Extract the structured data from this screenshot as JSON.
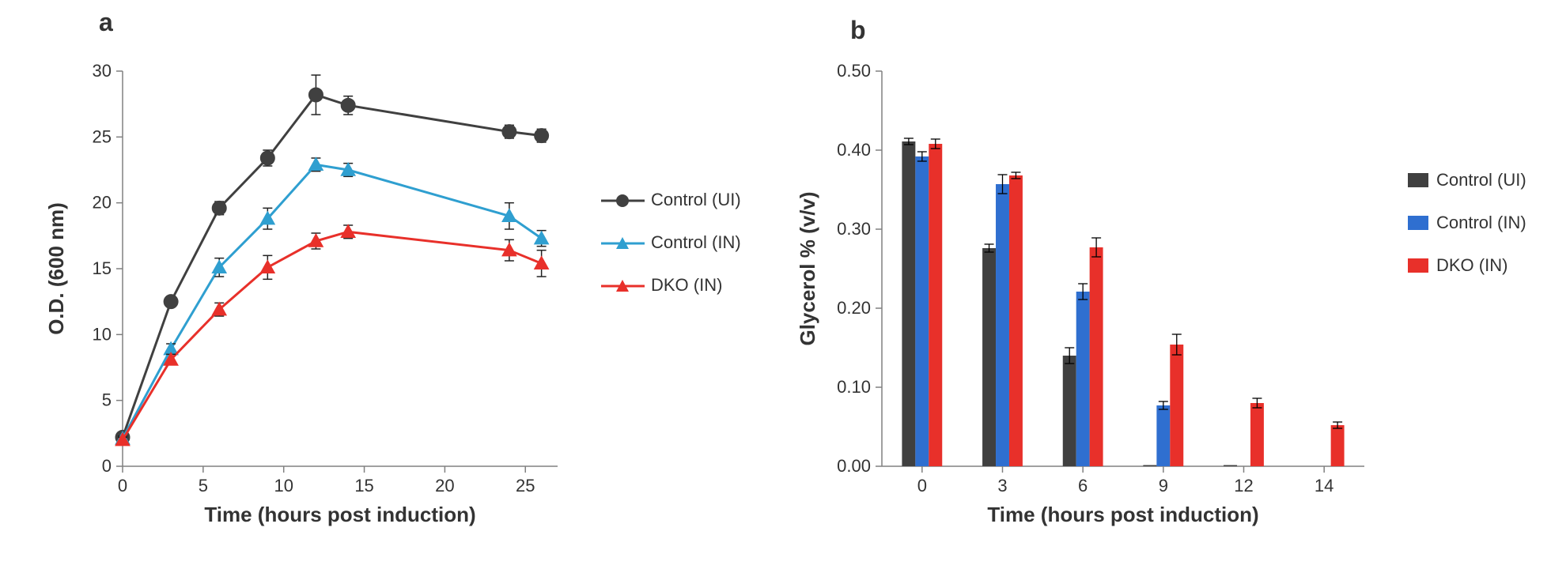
{
  "panel_a": {
    "label": "a",
    "label_fontsize": 32,
    "type": "line",
    "xlabel": "Time (hours post induction)",
    "ylabel": "O.D. (600 nm)",
    "label_fontsize_axis": 26,
    "tick_fontsize": 22,
    "xlim": [
      0,
      27
    ],
    "ylim": [
      0,
      30
    ],
    "xtick_values": [
      0,
      5,
      10,
      15,
      20,
      25
    ],
    "ytick_values": [
      0,
      5,
      10,
      15,
      20,
      25,
      30
    ],
    "background_color": "#ffffff",
    "axis_color": "#808080",
    "tick_length": 8,
    "line_width": 3,
    "marker_size": 9,
    "error_cap": 6,
    "series": [
      {
        "name": "Control (UI)",
        "color": "#404040",
        "marker": "circle",
        "x": [
          0,
          3,
          6,
          9,
          12,
          14,
          24,
          26
        ],
        "y": [
          2.2,
          12.5,
          19.6,
          23.4,
          28.2,
          27.4,
          25.4,
          25.1
        ],
        "err": [
          0.2,
          0.4,
          0.5,
          0.6,
          1.5,
          0.7,
          0.5,
          0.5
        ]
      },
      {
        "name": "Control (IN)",
        "color": "#2f9fd0",
        "marker": "triangle",
        "x": [
          0,
          3,
          6,
          9,
          12,
          14,
          24,
          26
        ],
        "y": [
          2.1,
          8.9,
          15.1,
          18.8,
          22.9,
          22.5,
          19.0,
          17.3
        ],
        "err": [
          0.2,
          0.4,
          0.7,
          0.8,
          0.5,
          0.5,
          1.0,
          0.6
        ]
      },
      {
        "name": "DKO (IN)",
        "color": "#e8302a",
        "marker": "triangle",
        "x": [
          0,
          3,
          6,
          9,
          12,
          14,
          24,
          26
        ],
        "y": [
          2.0,
          8.1,
          11.9,
          15.1,
          17.1,
          17.8,
          16.4,
          15.4
        ],
        "err": [
          0.2,
          0.4,
          0.5,
          0.9,
          0.6,
          0.5,
          0.8,
          1.0
        ]
      }
    ],
    "legend_items": [
      "Control (UI)",
      "Control (IN)",
      "DKO (IN)"
    ]
  },
  "panel_b": {
    "label": "b",
    "label_fontsize": 32,
    "type": "bar",
    "xlabel": "Time (hours post induction)",
    "ylabel": "Glycerol % (v/v)",
    "label_fontsize_axis": 26,
    "tick_fontsize": 22,
    "categories": [
      "0",
      "3",
      "6",
      "9",
      "12",
      "14"
    ],
    "ylim": [
      0,
      0.5
    ],
    "ytick_values": [
      0.0,
      0.1,
      0.2,
      0.3,
      0.4,
      0.5
    ],
    "ytick_labels": [
      "0.00",
      "0.10",
      "0.20",
      "0.30",
      "0.40",
      "0.50"
    ],
    "background_color": "#ffffff",
    "axis_color": "#808080",
    "tick_length": 8,
    "bar_gap": 0,
    "group_gap_ratio": 0.5,
    "error_cap": 6,
    "series": [
      {
        "name": "Control (UI)",
        "color": "#404040",
        "values": [
          0.411,
          0.276,
          0.14,
          0.001,
          0.001,
          0.0
        ],
        "err": [
          0.004,
          0.005,
          0.01,
          0.0,
          0.0,
          0.0
        ]
      },
      {
        "name": "Control (IN)",
        "color": "#2f6fd0",
        "values": [
          0.392,
          0.357,
          0.221,
          0.077,
          0.0,
          0.0
        ],
        "err": [
          0.006,
          0.012,
          0.01,
          0.005,
          0.0,
          0.0
        ]
      },
      {
        "name": "DKO (IN)",
        "color": "#e8302a",
        "values": [
          0.408,
          0.368,
          0.277,
          0.154,
          0.08,
          0.052
        ],
        "err": [
          0.006,
          0.004,
          0.012,
          0.013,
          0.006,
          0.004
        ]
      }
    ],
    "legend_items": [
      "Control (UI)",
      "Control (IN)",
      "DKO (IN)"
    ]
  }
}
